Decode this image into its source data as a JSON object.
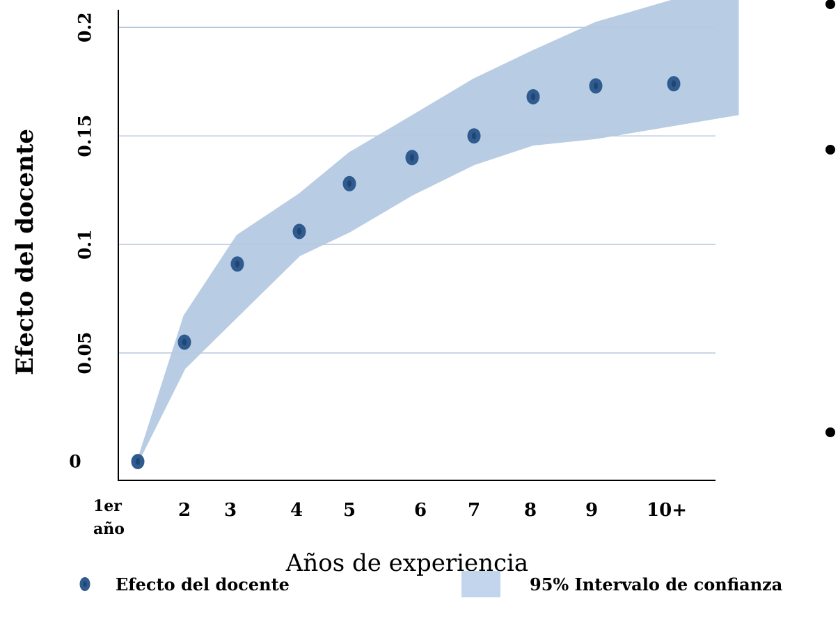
{
  "chart_data": {
    "type": "scatter",
    "xlabel": "Años de experiencia",
    "ylabel": "Efecto del  docente",
    "categories": [
      "1er año",
      "2",
      "3",
      "4",
      "5",
      "6",
      "7",
      "8",
      "9",
      "10+"
    ],
    "yticks": [
      "0",
      "0.05",
      "0.1",
      "0.15",
      "0.2"
    ],
    "ylim": [
      0,
      0.22
    ],
    "grid": true,
    "series": [
      {
        "name": "Efecto del docente",
        "type": "scatter",
        "color": "#2f5b8f",
        "values": [
          0,
          0.055,
          0.091,
          0.106,
          0.128,
          0.14,
          0.15,
          0.168,
          0.173,
          0.174
        ]
      },
      {
        "name": "95% Intervalo de confianza",
        "type": "band",
        "color": "#b8cce4",
        "lower": [
          0,
          0.043,
          0.067,
          0.095,
          0.106,
          0.123,
          0.137,
          0.146,
          0.149,
          0.16
        ],
        "upper": [
          0,
          0.067,
          0.104,
          0.123,
          0.142,
          0.159,
          0.176,
          0.189,
          0.202,
          0.221
        ]
      }
    ],
    "legend": {
      "position": "bottom",
      "items": [
        "Efecto del docente",
        "95% Intervalo de confianza"
      ]
    }
  }
}
